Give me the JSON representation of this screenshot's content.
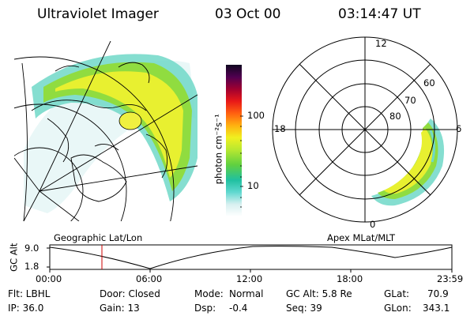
{
  "header": {
    "instrument": "Ultraviolet Imager",
    "date": "03 Oct 00",
    "time": "03:14:47 UT"
  },
  "colorbar": {
    "unit_label": "photon cm⁻²s⁻¹",
    "ticks": [
      "100",
      "10"
    ],
    "colors": [
      "#1a0a3a",
      "#3a0050",
      "#800040",
      "#c00018",
      "#f01818",
      "#ff7010",
      "#ffd020",
      "#d8f040",
      "#80e020",
      "#30c8b0",
      "#a0e8e8",
      "#ffffff"
    ]
  },
  "map_left": {
    "label": "Geographic Lat/Lon"
  },
  "map_right": {
    "label": "Apex MLat/MLT",
    "lat_labels": [
      "80",
      "70",
      "60"
    ],
    "mlt_labels": [
      "12",
      "18",
      "6",
      "0"
    ]
  },
  "timeline": {
    "ylabel": "GC Alt",
    "yticks": [
      "9.0",
      "1.8"
    ],
    "xticks": [
      "00:00",
      "06:00",
      "12:00",
      "18:00",
      "23:59"
    ],
    "marker_time": "03:14:47",
    "line_color": "#cc0000"
  },
  "info": {
    "row1": {
      "flt": "Flt: LBHL",
      "door": "Door: Closed",
      "mode_label": "Mode:",
      "mode_value": "Normal",
      "gcalt": "GC Alt: 5.8 Re",
      "glat": "GLat:",
      "glat_value": "70.9"
    },
    "row2": {
      "ip": "IP: 36.0",
      "gain": "Gain: 13",
      "dsp_label": "Dsp:",
      "dsp_value": "-0.4",
      "seq": "Seq: 39",
      "glon": "GLon:",
      "glon_value": "343.1"
    }
  }
}
